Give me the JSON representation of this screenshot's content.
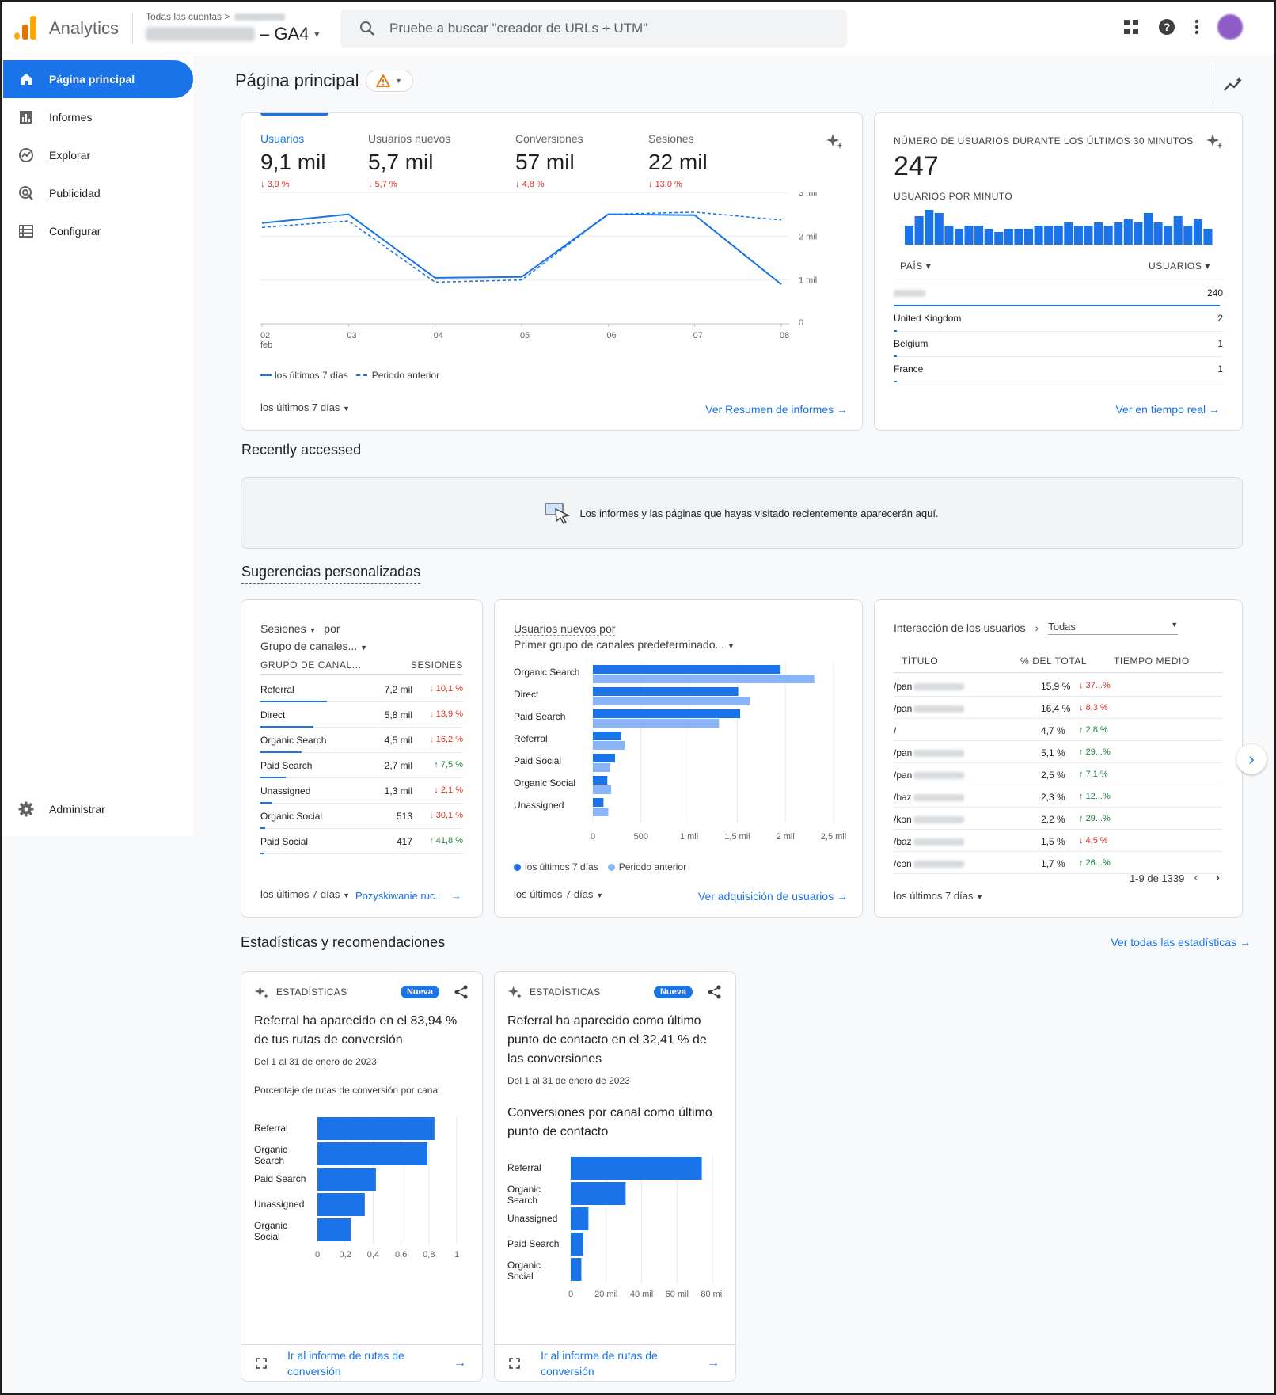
{
  "header": {
    "app_name": "Analytics",
    "breadcrumb": "Todas las cuentas",
    "property_suffix": "– GA4",
    "search_placeholder": "Pruebe a buscar \"creador de URLs + UTM\""
  },
  "sidebar": {
    "items": [
      {
        "label": "Página principal",
        "icon": "home-icon"
      },
      {
        "label": "Informes",
        "icon": "bar-chart-icon"
      },
      {
        "label": "Explorar",
        "icon": "explore-icon"
      },
      {
        "label": "Publicidad",
        "icon": "ads-icon"
      },
      {
        "label": "Configurar",
        "icon": "list-icon"
      }
    ],
    "admin_label": "Administrar"
  },
  "page": {
    "title": "Página principal"
  },
  "overview": {
    "kpis": [
      {
        "label": "Usuarios",
        "value": "9,1 mil",
        "change": "3,9 %"
      },
      {
        "label": "Usuarios nuevos",
        "value": "5,7 mil",
        "change": "5,7 %"
      },
      {
        "label": "Conversiones",
        "value": "57 mil",
        "change": "4,8 %"
      },
      {
        "label": "Sesiones",
        "value": "22 mil",
        "change": "13,0 %"
      }
    ],
    "y_ticks": [
      "3 mil",
      "2 mil",
      "1 mil",
      "0"
    ],
    "x_ticks": [
      "02",
      "03",
      "04",
      "05",
      "06",
      "07",
      "08"
    ],
    "x_first_sub": "feb",
    "legend_current": "los últimos 7 días",
    "legend_previous": "Periodo anterior",
    "date_range": "los últimos 7 días",
    "link": "Ver Resumen de informes"
  },
  "chart_data": {
    "type": "line",
    "x": [
      "02 feb",
      "03",
      "04",
      "05",
      "06",
      "07",
      "08"
    ],
    "series": [
      {
        "name": "los últimos 7 días",
        "values": [
          2300,
          2500,
          1050,
          1070,
          2500,
          2480,
          900
        ]
      },
      {
        "name": "Periodo anterior",
        "values": [
          2200,
          2350,
          950,
          1000,
          2500,
          2550,
          2370
        ]
      }
    ],
    "ylim": [
      0,
      3000
    ]
  },
  "realtime": {
    "title": "NÚMERO DE USUARIOS DURANTE LOS ÚLTIMOS 30 MINUTOS",
    "value": "247",
    "per_minute_label": "USUARIOS POR MINUTO",
    "bars": [
      6,
      9,
      11,
      10,
      6,
      5,
      6,
      6,
      5,
      4,
      5,
      5,
      5,
      6,
      6,
      6,
      7,
      6,
      6,
      7,
      6,
      7,
      8,
      7,
      10,
      7,
      6,
      9,
      6,
      8,
      5
    ],
    "col_country": "PAÍS",
    "col_users": "USUARIOS",
    "rows": [
      {
        "country": "",
        "users": "240",
        "fill": 0.99
      },
      {
        "country": "United Kingdom",
        "users": "2",
        "fill": 0.01
      },
      {
        "country": "Belgium",
        "users": "1",
        "fill": 0.005
      },
      {
        "country": "France",
        "users": "1",
        "fill": 0.005
      }
    ],
    "link": "Ver en tiempo real"
  },
  "recent": {
    "title": "Recently accessed",
    "message": "Los informes y las páginas que hayas visitado recientemente aparecerán aquí."
  },
  "suggestions": {
    "title": "Sugerencias personalizadas",
    "sessions_card": {
      "metric": "Sesiones",
      "by": "por",
      "dimension": "Grupo de canales...",
      "col_dim": "GRUPO DE CANAL...",
      "col_val": "SESIONES",
      "rows": [
        {
          "name": "Referral",
          "value": "7,2 mil",
          "change": "10,1 %",
          "dir": "down",
          "fill": 1.0
        },
        {
          "name": "Direct",
          "value": "5,8 mil",
          "change": "13,9 %",
          "dir": "down",
          "fill": 0.8
        },
        {
          "name": "Organic Search",
          "value": "4,5 mil",
          "change": "16,2 %",
          "dir": "down",
          "fill": 0.62
        },
        {
          "name": "Paid Search",
          "value": "2,7 mil",
          "change": "7,5 %",
          "dir": "up",
          "fill": 0.38
        },
        {
          "name": "Unassigned",
          "value": "1,3 mil",
          "change": "2,1 %",
          "dir": "down",
          "fill": 0.18
        },
        {
          "name": "Organic Social",
          "value": "513",
          "change": "30,1 %",
          "dir": "down",
          "fill": 0.07
        },
        {
          "name": "Paid Social",
          "value": "417",
          "change": "41,8 %",
          "dir": "up",
          "fill": 0.06
        }
      ],
      "date_range": "los últimos 7 días",
      "link": "Pozyskiwanie ruc..."
    },
    "new_users_card": {
      "line1": "Usuarios nuevos por",
      "line2": "Primer grupo de canales predeterminado...",
      "categories": [
        "Organic Search",
        "Direct",
        "Paid Search",
        "Referral",
        "Paid Social",
        "Organic Social",
        "Unassigned"
      ],
      "current": [
        1950,
        1510,
        1530,
        290,
        230,
        150,
        110
      ],
      "previous": [
        2300,
        1630,
        1310,
        330,
        180,
        190,
        160
      ],
      "ticks": [
        "0",
        "500",
        "1 mil",
        "1,5 mil",
        "2 mil",
        "2,5 mil"
      ],
      "xmax": 2500,
      "legend_current": "los últimos 7 días",
      "legend_previous": "Periodo anterior",
      "date_range": "los últimos 7 días",
      "link": "Ver adquisición de usuarios"
    },
    "engagement_card": {
      "title": "Interacción de los usuarios",
      "filter": "Todas",
      "col_title": "TÍTULO",
      "col_pct": "% DEL TOTAL",
      "col_time": "TIEMPO MEDIO",
      "rows": [
        {
          "title": "/pan",
          "pct": "15,9 %",
          "change": "37...%",
          "dir": "down"
        },
        {
          "title": "/pan",
          "pct": "16,4 %",
          "change": "8,3 %",
          "dir": "down"
        },
        {
          "title": "/",
          "pct": "4,7 %",
          "change": "2,8 %",
          "dir": "up"
        },
        {
          "title": "/pan",
          "pct": "5,1 %",
          "change": "29...%",
          "dir": "up"
        },
        {
          "title": "/pan",
          "pct": "2,5 %",
          "change": "7,1 %",
          "dir": "up"
        },
        {
          "title": "/baz",
          "pct": "2,3 %",
          "change": "12...%",
          "dir": "up"
        },
        {
          "title": "/kon",
          "pct": "2,2 %",
          "change": "29...%",
          "dir": "up"
        },
        {
          "title": "/baz",
          "pct": "1,5 %",
          "change": "4,5 %",
          "dir": "down"
        },
        {
          "title": "/con",
          "pct": "1,7 %",
          "change": "26...%",
          "dir": "up"
        }
      ],
      "pagination": "1-9 de 1339",
      "date_range": "los últimos 7 días"
    }
  },
  "insights": {
    "title": "Estadísticas y recomendaciones",
    "see_all": "Ver todas las estadísticas",
    "cards": [
      {
        "tag": "ESTADÍSTICAS",
        "badge": "Nueva",
        "headline": "Referral ha aparecido en el 83,94 % de tus rutas de conversión",
        "period": "Del 1 al 31 de enero de 2023",
        "subtitle": "Porcentaje de rutas de conversión por canal",
        "categories": [
          "Referral",
          "Organic Search",
          "Paid Search",
          "Unassigned",
          "Organic Social"
        ],
        "values": [
          0.84,
          0.79,
          0.42,
          0.34,
          0.24
        ],
        "ticks": [
          "0",
          "0,2",
          "0,4",
          "0,6",
          "0,8",
          "1"
        ],
        "xmax": 1,
        "link": "Ir al informe de rutas de conversión"
      },
      {
        "tag": "ESTADÍSTICAS",
        "badge": "Nueva",
        "headline": "Referral ha aparecido como último punto de contacto en el 32,41 % de las conversiones",
        "period": "Del 1 al 31 de enero de 2023",
        "subtitle": "Conversiones por canal como último punto de contacto",
        "categories": [
          "Referral",
          "Organic Search",
          "Unassigned",
          "Paid Search",
          "Organic Social"
        ],
        "values": [
          74,
          31,
          10,
          7,
          6
        ],
        "ticks": [
          "0",
          "20 mil",
          "40 mil",
          "60 mil",
          "80 mil"
        ],
        "xmax": 80,
        "link": "Ir al informe de rutas de conversión"
      }
    ]
  },
  "colors": {
    "accent": "#1a73e8",
    "accent_light": "#8ab4f8",
    "down": "#d93025",
    "up": "#188038"
  }
}
